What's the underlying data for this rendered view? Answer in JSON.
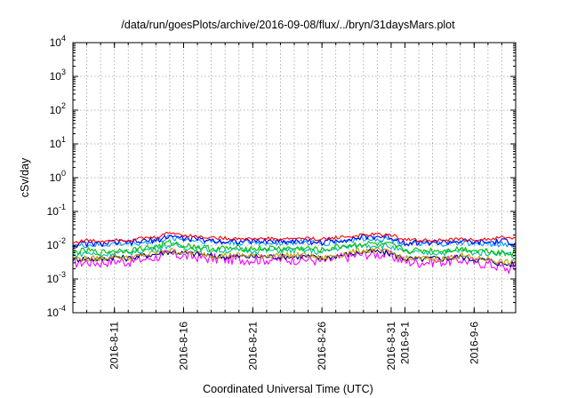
{
  "chart_data": {
    "type": "line",
    "title": "/data/run/goesPlots/archive/2016-09-08/flux/../bryn/31daysMars.plot",
    "xlabel": "Coordinated Universal Time (UTC)",
    "ylabel": "cSv/day",
    "yscale": "log",
    "ylim": [
      0.0001,
      10000
    ],
    "y_ticks": [
      {
        "value": 0.0001,
        "base": "10",
        "exp": "-4"
      },
      {
        "value": 0.001,
        "base": "10",
        "exp": "-3"
      },
      {
        "value": 0.01,
        "base": "10",
        "exp": "-2"
      },
      {
        "value": 0.1,
        "base": "10",
        "exp": "-1"
      },
      {
        "value": 1,
        "base": "10",
        "exp": "0"
      },
      {
        "value": 10,
        "base": "10",
        "exp": "1"
      },
      {
        "value": 100,
        "base": "10",
        "exp": "2"
      },
      {
        "value": 1000,
        "base": "10",
        "exp": "3"
      },
      {
        "value": 10000,
        "base": "10",
        "exp": "4"
      }
    ],
    "xlim": [
      "2016-08-08",
      "2016-09-09"
    ],
    "x_tick_labels": [
      "2016-8-11",
      "2016-8-16",
      "2016-8-21",
      "2016-8-26",
      "2016-8-31",
      "2016-9-1",
      "2016-9-6"
    ],
    "x_tick_dates": [
      "2016-08-11",
      "2016-08-16",
      "2016-08-21",
      "2016-08-26",
      "2016-08-31",
      "2016-09-01",
      "2016-09-06"
    ],
    "grid": true,
    "legend": "none",
    "x": [
      "2016-08-08",
      "2016-08-09",
      "2016-08-10",
      "2016-08-11",
      "2016-08-12",
      "2016-08-13",
      "2016-08-14",
      "2016-08-15",
      "2016-08-16",
      "2016-08-17",
      "2016-08-18",
      "2016-08-19",
      "2016-08-20",
      "2016-08-21",
      "2016-08-22",
      "2016-08-23",
      "2016-08-24",
      "2016-08-25",
      "2016-08-26",
      "2016-08-27",
      "2016-08-28",
      "2016-08-29",
      "2016-08-30",
      "2016-08-31",
      "2016-09-01",
      "2016-09-02",
      "2016-09-03",
      "2016-09-04",
      "2016-09-05",
      "2016-09-06",
      "2016-09-07",
      "2016-09-08",
      "2016-09-09"
    ],
    "series": [
      {
        "color": "#ff0000",
        "values": [
          0.012,
          0.014,
          0.013,
          0.015,
          0.014,
          0.016,
          0.017,
          0.024,
          0.02,
          0.018,
          0.017,
          0.016,
          0.016,
          0.015,
          0.016,
          0.015,
          0.016,
          0.016,
          0.015,
          0.017,
          0.018,
          0.02,
          0.021,
          0.02,
          0.015,
          0.014,
          0.014,
          0.014,
          0.015,
          0.014,
          0.015,
          0.017,
          0.016
        ]
      },
      {
        "color": "#0000ff",
        "values": [
          0.01,
          0.011,
          0.011,
          0.012,
          0.012,
          0.013,
          0.014,
          0.019,
          0.016,
          0.015,
          0.014,
          0.013,
          0.013,
          0.013,
          0.013,
          0.013,
          0.013,
          0.013,
          0.012,
          0.014,
          0.015,
          0.017,
          0.018,
          0.017,
          0.012,
          0.012,
          0.012,
          0.012,
          0.013,
          0.012,
          0.012,
          0.013,
          0.012
        ]
      },
      {
        "color": "#00a0ff",
        "values": [
          0.009,
          0.01,
          0.01,
          0.011,
          0.011,
          0.012,
          0.013,
          0.017,
          0.015,
          0.014,
          0.013,
          0.012,
          0.012,
          0.012,
          0.012,
          0.012,
          0.012,
          0.012,
          0.011,
          0.013,
          0.014,
          0.016,
          0.016,
          0.015,
          0.011,
          0.011,
          0.011,
          0.011,
          0.012,
          0.011,
          0.011,
          0.011,
          0.01
        ]
      },
      {
        "color": "#00c000",
        "values": [
          0.006,
          0.007,
          0.006,
          0.007,
          0.007,
          0.008,
          0.009,
          0.012,
          0.01,
          0.009,
          0.008,
          0.008,
          0.008,
          0.008,
          0.008,
          0.008,
          0.008,
          0.008,
          0.007,
          0.009,
          0.01,
          0.011,
          0.011,
          0.01,
          0.007,
          0.007,
          0.007,
          0.007,
          0.008,
          0.007,
          0.007,
          0.006,
          0.006
        ]
      },
      {
        "color": "#00c0a0",
        "values": [
          0.005,
          0.006,
          0.005,
          0.006,
          0.006,
          0.007,
          0.008,
          0.01,
          0.009,
          0.008,
          0.007,
          0.007,
          0.007,
          0.007,
          0.007,
          0.007,
          0.007,
          0.007,
          0.006,
          0.008,
          0.009,
          0.01,
          0.01,
          0.009,
          0.006,
          0.006,
          0.006,
          0.006,
          0.007,
          0.006,
          0.006,
          0.006,
          0.005
        ]
      },
      {
        "color": "#c0a000",
        "values": [
          0.004,
          0.004,
          0.004,
          0.005,
          0.004,
          0.005,
          0.006,
          0.007,
          0.006,
          0.006,
          0.005,
          0.005,
          0.005,
          0.005,
          0.005,
          0.005,
          0.005,
          0.005,
          0.004,
          0.005,
          0.006,
          0.007,
          0.007,
          0.006,
          0.004,
          0.004,
          0.004,
          0.004,
          0.005,
          0.004,
          0.004,
          0.0032,
          0.003
        ]
      },
      {
        "color": "#000080",
        "values": [
          0.0038,
          0.004,
          0.0038,
          0.0045,
          0.004,
          0.0048,
          0.0055,
          0.0065,
          0.0058,
          0.0055,
          0.0048,
          0.0046,
          0.0046,
          0.0046,
          0.0046,
          0.0046,
          0.0046,
          0.0046,
          0.004,
          0.0048,
          0.0055,
          0.0064,
          0.0064,
          0.0056,
          0.004,
          0.0038,
          0.004,
          0.004,
          0.0046,
          0.0038,
          0.0036,
          0.0028,
          0.0027
        ]
      },
      {
        "color": "#ff00ff",
        "values": [
          0.003,
          0.0032,
          0.003,
          0.0035,
          0.0032,
          0.0038,
          0.0045,
          0.0055,
          0.0048,
          0.0045,
          0.004,
          0.0038,
          0.0038,
          0.0038,
          0.0038,
          0.0038,
          0.0038,
          0.0038,
          0.0033,
          0.004,
          0.0046,
          0.0055,
          0.0055,
          0.0048,
          0.0033,
          0.0031,
          0.0033,
          0.0033,
          0.0038,
          0.0031,
          0.0028,
          0.0022,
          0.0018
        ]
      }
    ]
  }
}
